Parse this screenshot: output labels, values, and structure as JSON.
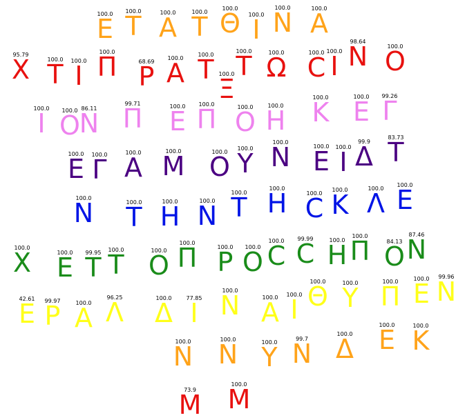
{
  "colors": {
    "orange": "#ffa31a",
    "red": "#e8110f",
    "violet": "#ee82ee",
    "indigo": "#4b0082",
    "blue": "#0014e6",
    "green": "#1a8c1a",
    "yellow": "#ffff1a"
  },
  "tokens": [
    {
      "ch": "Ε",
      "score": "100.0",
      "color": "orange"
    },
    {
      "ch": "Τ",
      "score": "100.0",
      "color": "orange"
    },
    {
      "ch": "Α",
      "score": "100.0",
      "color": "orange"
    },
    {
      "ch": "Τ",
      "score": "100.0",
      "color": "orange"
    },
    {
      "ch": "Θ",
      "score": "100.0",
      "color": "orange"
    },
    {
      "ch": "Ι",
      "score": "100.0",
      "color": "orange"
    },
    {
      "ch": "Ν",
      "score": "100.0",
      "color": "orange"
    },
    {
      "ch": "Α",
      "score": "100.0",
      "color": "orange"
    },
    {
      "ch": "Χ",
      "score": "95.79",
      "color": "red"
    },
    {
      "ch": "Τ",
      "score": "100.0",
      "color": "red"
    },
    {
      "ch": "Ι",
      "score": "100.0",
      "color": "red"
    },
    {
      "ch": "Π",
      "score": "100.0",
      "color": "red"
    },
    {
      "ch": "Ρ",
      "score": "68.69",
      "color": "red"
    },
    {
      "ch": "Α",
      "score": "100.0",
      "color": "red"
    },
    {
      "ch": "Τ",
      "score": "100.0",
      "color": "red"
    },
    {
      "ch": "Ξ",
      "score": "100.0",
      "color": "red"
    },
    {
      "ch": "Τ",
      "score": "100.0",
      "color": "red"
    },
    {
      "ch": "Ω",
      "score": "100.0",
      "color": "red"
    },
    {
      "ch": "C",
      "score": "100.0",
      "color": "red"
    },
    {
      "ch": "Ι",
      "score": "100.0",
      "color": "red"
    },
    {
      "ch": "Ν",
      "score": "98.64",
      "color": "red"
    },
    {
      "ch": "Ο",
      "score": "100.0",
      "color": "red"
    },
    {
      "ch": "Ι",
      "score": "100.0",
      "color": "violet"
    },
    {
      "ch": "Ο",
      "score": "100.0",
      "color": "violet"
    },
    {
      "ch": "Ν",
      "score": "86.11",
      "color": "violet"
    },
    {
      "ch": "Π",
      "score": "99.71",
      "color": "violet"
    },
    {
      "ch": "Ε",
      "score": "100.0",
      "color": "violet"
    },
    {
      "ch": "Π",
      "score": "100.0",
      "color": "violet"
    },
    {
      "ch": "Ο",
      "score": "100.0",
      "color": "violet"
    },
    {
      "ch": "Η",
      "score": "100.0",
      "color": "violet"
    },
    {
      "ch": "Κ",
      "score": "100.0",
      "color": "violet"
    },
    {
      "ch": "Ε",
      "score": "100.0",
      "color": "violet"
    },
    {
      "ch": "Γ",
      "score": "99.26",
      "color": "violet"
    },
    {
      "ch": "Ε",
      "score": "100.0",
      "color": "indigo"
    },
    {
      "ch": "Γ",
      "score": "100.0",
      "color": "indigo"
    },
    {
      "ch": "Α",
      "score": "100.0",
      "color": "indigo"
    },
    {
      "ch": "Μ",
      "score": "100.0",
      "color": "indigo"
    },
    {
      "ch": "Ο",
      "score": "100.0",
      "color": "indigo"
    },
    {
      "ch": "Υ",
      "score": "100.0",
      "color": "indigo"
    },
    {
      "ch": "Ν",
      "score": "100.0",
      "color": "indigo"
    },
    {
      "ch": "Ε",
      "score": "100.0",
      "color": "indigo"
    },
    {
      "ch": "Ι",
      "score": "100.0",
      "color": "indigo"
    },
    {
      "ch": "Δ",
      "score": "99.9",
      "color": "indigo"
    },
    {
      "ch": "Τ",
      "score": "83.73",
      "color": "indigo"
    },
    {
      "ch": "Ν",
      "score": "100.0",
      "color": "blue"
    },
    {
      "ch": "Τ",
      "score": "100.0",
      "color": "blue"
    },
    {
      "ch": "Η",
      "score": "100.0",
      "color": "blue"
    },
    {
      "ch": "Ν",
      "score": "100.0",
      "color": "blue"
    },
    {
      "ch": "Τ",
      "score": "100.0",
      "color": "blue"
    },
    {
      "ch": "Η",
      "score": "100.0",
      "color": "blue"
    },
    {
      "ch": "C",
      "score": "100.0",
      "color": "blue"
    },
    {
      "ch": "Κ",
      "score": "100.0",
      "color": "blue"
    },
    {
      "ch": "Λ",
      "score": "100.0",
      "color": "blue"
    },
    {
      "ch": "Ε",
      "score": "100.0",
      "color": "blue"
    },
    {
      "ch": "Χ",
      "score": "100.0",
      "color": "green"
    },
    {
      "ch": "Ε",
      "score": "100.0",
      "color": "green"
    },
    {
      "ch": "Τ",
      "score": "99.95",
      "color": "green"
    },
    {
      "ch": "Τ",
      "score": "100.0",
      "color": "green"
    },
    {
      "ch": "Ο",
      "score": "100.0",
      "color": "green"
    },
    {
      "ch": "Π",
      "score": "100.0",
      "color": "green"
    },
    {
      "ch": "Ρ",
      "score": "100.0",
      "color": "green"
    },
    {
      "ch": "Ο",
      "score": "100.0",
      "color": "green"
    },
    {
      "ch": "C",
      "score": "100.0",
      "color": "green"
    },
    {
      "ch": "C",
      "score": "99.99",
      "color": "green"
    },
    {
      "ch": "Η",
      "score": "100.0",
      "color": "green"
    },
    {
      "ch": "Π",
      "score": "100.0",
      "color": "green"
    },
    {
      "ch": "Ο",
      "score": "84.13",
      "color": "green"
    },
    {
      "ch": "Ν",
      "score": "87.46",
      "color": "green"
    },
    {
      "ch": "Ε",
      "score": "42.61",
      "color": "yellow"
    },
    {
      "ch": "Ρ",
      "score": "99.97",
      "color": "yellow"
    },
    {
      "ch": "Α",
      "score": "100.0",
      "color": "yellow"
    },
    {
      "ch": "Λ",
      "score": "96.25",
      "color": "yellow"
    },
    {
      "ch": "Δ",
      "score": "100.0",
      "color": "yellow"
    },
    {
      "ch": "Ι",
      "score": "77.85",
      "color": "yellow"
    },
    {
      "ch": "Ν",
      "score": "100.0",
      "color": "yellow"
    },
    {
      "ch": "Α",
      "score": "100.0",
      "color": "yellow"
    },
    {
      "ch": "Ι",
      "score": "100.0",
      "color": "yellow"
    },
    {
      "ch": "Θ",
      "score": "100.0",
      "color": "yellow"
    },
    {
      "ch": "Υ",
      "score": "100.0",
      "color": "yellow"
    },
    {
      "ch": "Π",
      "score": "100.0",
      "color": "yellow"
    },
    {
      "ch": "Ε",
      "score": "100.0",
      "color": "yellow"
    },
    {
      "ch": "Ν",
      "score": "99.96",
      "color": "yellow"
    },
    {
      "ch": "Ν",
      "score": "100.0",
      "color": "orange"
    },
    {
      "ch": "Ν",
      "score": "100.0",
      "color": "orange"
    },
    {
      "ch": "Υ",
      "score": "100.0",
      "color": "orange"
    },
    {
      "ch": "Ν",
      "score": "99.7",
      "color": "orange"
    },
    {
      "ch": "Δ",
      "score": "100.0",
      "color": "orange"
    },
    {
      "ch": "Ε",
      "score": "100.0",
      "color": "orange"
    },
    {
      "ch": "Κ",
      "score": "100.0",
      "color": "orange"
    },
    {
      "ch": "Μ",
      "score": "73.9",
      "color": "red"
    },
    {
      "ch": "Μ",
      "score": "100.0",
      "color": "red"
    }
  ]
}
